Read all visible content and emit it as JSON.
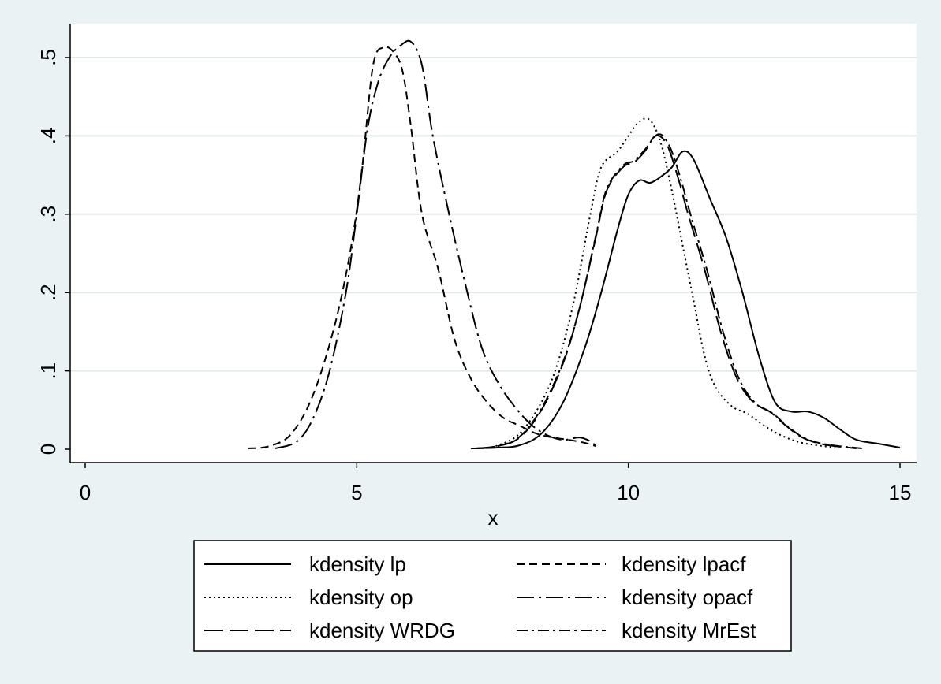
{
  "chart_data": {
    "type": "line",
    "title": "",
    "xlabel": "x",
    "ylabel": "",
    "xlim": [
      0,
      15
    ],
    "ylim": [
      0,
      0.52
    ],
    "x_ticks": [
      0,
      5,
      10,
      15
    ],
    "x_tick_labels": [
      "0",
      "5",
      "10",
      "15"
    ],
    "y_ticks": [
      0,
      0.1,
      0.2,
      0.3,
      0.4,
      0.5
    ],
    "y_tick_labels": [
      "0",
      ".1",
      ".2",
      ".3",
      ".4",
      ".5"
    ],
    "grid": "horizontal",
    "legend_position": "bottom",
    "series": [
      {
        "name": "kdensity lp",
        "dash": "solid",
        "color": "#000000",
        "points": [
          [
            7.1,
            0.001
          ],
          [
            7.6,
            0.002
          ],
          [
            8.0,
            0.005
          ],
          [
            8.4,
            0.02
          ],
          [
            8.8,
            0.06
          ],
          [
            9.2,
            0.13
          ],
          [
            9.5,
            0.2
          ],
          [
            9.8,
            0.28
          ],
          [
            10.0,
            0.325
          ],
          [
            10.2,
            0.343
          ],
          [
            10.4,
            0.34
          ],
          [
            10.6,
            0.348
          ],
          [
            10.8,
            0.36
          ],
          [
            11.0,
            0.38
          ],
          [
            11.2,
            0.37
          ],
          [
            11.5,
            0.32
          ],
          [
            11.8,
            0.27
          ],
          [
            12.1,
            0.2
          ],
          [
            12.4,
            0.12
          ],
          [
            12.7,
            0.06
          ],
          [
            13.0,
            0.048
          ],
          [
            13.3,
            0.048
          ],
          [
            13.6,
            0.04
          ],
          [
            13.9,
            0.025
          ],
          [
            14.2,
            0.012
          ],
          [
            14.6,
            0.007
          ],
          [
            15.0,
            0.002
          ]
        ]
      },
      {
        "name": "kdensity lpacf",
        "dash": "10,6",
        "color": "#000000",
        "points": [
          [
            3.0,
            0.001
          ],
          [
            3.4,
            0.004
          ],
          [
            3.8,
            0.02
          ],
          [
            4.2,
            0.07
          ],
          [
            4.6,
            0.16
          ],
          [
            4.9,
            0.26
          ],
          [
            5.1,
            0.36
          ],
          [
            5.3,
            0.49
          ],
          [
            5.5,
            0.513
          ],
          [
            5.7,
            0.505
          ],
          [
            5.85,
            0.48
          ],
          [
            6.0,
            0.41
          ],
          [
            6.2,
            0.3
          ],
          [
            6.5,
            0.23
          ],
          [
            6.8,
            0.14
          ],
          [
            7.1,
            0.09
          ],
          [
            7.4,
            0.06
          ],
          [
            7.7,
            0.04
          ],
          [
            8.0,
            0.03
          ],
          [
            8.3,
            0.02
          ],
          [
            8.6,
            0.015
          ],
          [
            8.9,
            0.012
          ],
          [
            9.2,
            0.008
          ],
          [
            9.4,
            0.004
          ]
        ]
      },
      {
        "name": "kdensity op",
        "dash": "2,4",
        "color": "#000000",
        "points": [
          [
            7.3,
            0.001
          ],
          [
            7.6,
            0.005
          ],
          [
            8.0,
            0.02
          ],
          [
            8.4,
            0.06
          ],
          [
            8.7,
            0.11
          ],
          [
            9.0,
            0.19
          ],
          [
            9.3,
            0.3
          ],
          [
            9.5,
            0.36
          ],
          [
            9.8,
            0.38
          ],
          [
            10.0,
            0.4
          ],
          [
            10.2,
            0.418
          ],
          [
            10.4,
            0.42
          ],
          [
            10.6,
            0.39
          ],
          [
            10.8,
            0.33
          ],
          [
            11.0,
            0.26
          ],
          [
            11.2,
            0.19
          ],
          [
            11.4,
            0.12
          ],
          [
            11.6,
            0.08
          ],
          [
            11.9,
            0.055
          ],
          [
            12.2,
            0.045
          ],
          [
            12.5,
            0.03
          ],
          [
            12.8,
            0.018
          ],
          [
            13.2,
            0.008
          ],
          [
            13.8,
            0.002
          ]
        ]
      },
      {
        "name": "kdensity opacf",
        "dash": "22,6,3,6",
        "color": "#000000",
        "points": [
          [
            3.5,
            0.001
          ],
          [
            3.9,
            0.01
          ],
          [
            4.2,
            0.04
          ],
          [
            4.5,
            0.1
          ],
          [
            4.8,
            0.2
          ],
          [
            5.0,
            0.3
          ],
          [
            5.2,
            0.41
          ],
          [
            5.4,
            0.47
          ],
          [
            5.6,
            0.5
          ],
          [
            5.8,
            0.515
          ],
          [
            6.0,
            0.52
          ],
          [
            6.2,
            0.49
          ],
          [
            6.4,
            0.4
          ],
          [
            6.7,
            0.3
          ],
          [
            7.0,
            0.21
          ],
          [
            7.3,
            0.13
          ],
          [
            7.6,
            0.085
          ],
          [
            7.9,
            0.055
          ],
          [
            8.2,
            0.032
          ],
          [
            8.5,
            0.018
          ],
          [
            8.8,
            0.012
          ],
          [
            9.1,
            0.015
          ],
          [
            9.3,
            0.01
          ],
          [
            9.4,
            0.004
          ]
        ]
      },
      {
        "name": "kdensity WRDG",
        "dash": "24,8",
        "color": "#000000",
        "points": [
          [
            7.2,
            0.001
          ],
          [
            7.6,
            0.004
          ],
          [
            8.0,
            0.015
          ],
          [
            8.4,
            0.05
          ],
          [
            8.8,
            0.11
          ],
          [
            9.1,
            0.18
          ],
          [
            9.4,
            0.27
          ],
          [
            9.6,
            0.33
          ],
          [
            9.9,
            0.36
          ],
          [
            10.1,
            0.366
          ],
          [
            10.3,
            0.38
          ],
          [
            10.5,
            0.4
          ],
          [
            10.7,
            0.39
          ],
          [
            10.9,
            0.35
          ],
          [
            11.1,
            0.3
          ],
          [
            11.4,
            0.23
          ],
          [
            11.7,
            0.15
          ],
          [
            12.0,
            0.09
          ],
          [
            12.3,
            0.06
          ],
          [
            12.6,
            0.048
          ],
          [
            12.9,
            0.03
          ],
          [
            13.2,
            0.015
          ],
          [
            13.6,
            0.006
          ],
          [
            14.2,
            0.001
          ]
        ]
      },
      {
        "name": "kdensity MrEst",
        "dash": "14,5,3,5",
        "color": "#000000",
        "points": [
          [
            7.2,
            0.001
          ],
          [
            7.6,
            0.004
          ],
          [
            8.0,
            0.016
          ],
          [
            8.4,
            0.052
          ],
          [
            8.8,
            0.112
          ],
          [
            9.1,
            0.18
          ],
          [
            9.4,
            0.272
          ],
          [
            9.6,
            0.332
          ],
          [
            9.9,
            0.362
          ],
          [
            10.1,
            0.368
          ],
          [
            10.3,
            0.382
          ],
          [
            10.55,
            0.402
          ],
          [
            10.75,
            0.388
          ],
          [
            10.95,
            0.348
          ],
          [
            11.15,
            0.298
          ],
          [
            11.45,
            0.228
          ],
          [
            11.75,
            0.148
          ],
          [
            12.05,
            0.088
          ],
          [
            12.35,
            0.058
          ],
          [
            12.65,
            0.046
          ],
          [
            12.95,
            0.028
          ],
          [
            13.25,
            0.014
          ],
          [
            13.65,
            0.006
          ],
          [
            14.3,
            0.001
          ]
        ]
      }
    ]
  },
  "legend": {
    "items": [
      {
        "label": "kdensity lp",
        "dash": "solid"
      },
      {
        "label": "kdensity lpacf",
        "dash": "10,6"
      },
      {
        "label": "kdensity op",
        "dash": "2,4"
      },
      {
        "label": "kdensity opacf",
        "dash": "22,6,3,6"
      },
      {
        "label": "kdensity WRDG",
        "dash": "24,8"
      },
      {
        "label": "kdensity MrEst",
        "dash": "14,5,3,5"
      }
    ]
  },
  "colors": {
    "outer_background": "#eaf2f3",
    "plot_background": "#ffffff",
    "grid": "#e1e9ec",
    "line": "#000000"
  }
}
